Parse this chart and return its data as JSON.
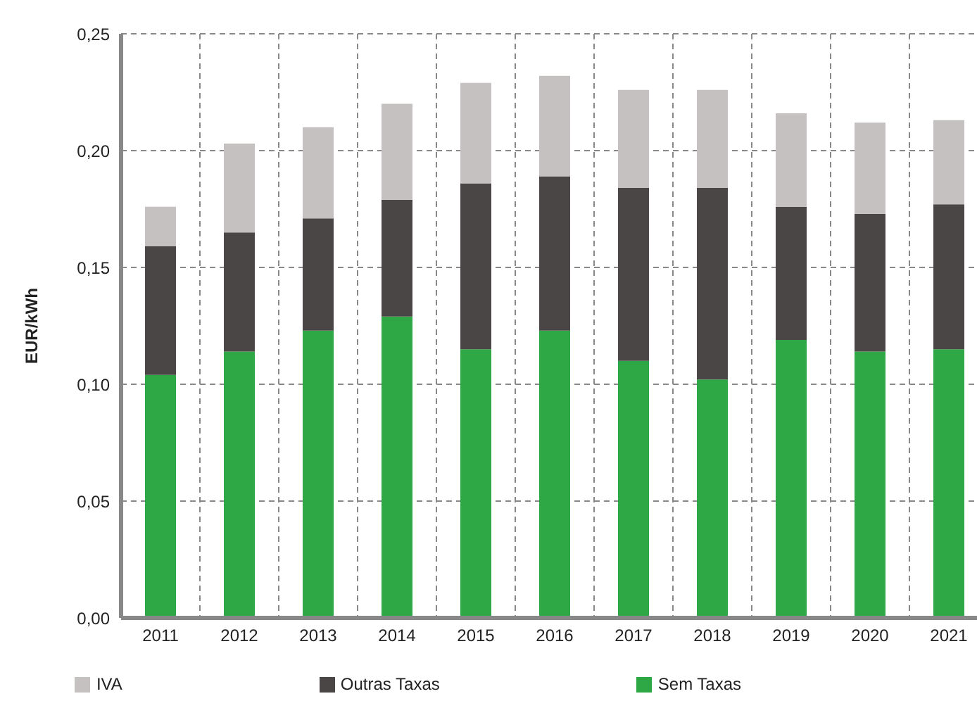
{
  "chart_data": {
    "type": "bar",
    "stacked": true,
    "ylabel": "EUR/kWh",
    "categories": [
      "2011",
      "2012",
      "2013",
      "2014",
      "2015",
      "2016",
      "2017",
      "2018",
      "2019",
      "2020",
      "2021"
    ],
    "series": [
      {
        "name": "Sem Taxas",
        "color": "#2ea844",
        "values": [
          0.104,
          0.114,
          0.123,
          0.129,
          0.115,
          0.123,
          0.11,
          0.102,
          0.119,
          0.114,
          0.115
        ]
      },
      {
        "name": "Outras Taxas",
        "color": "#4a4646",
        "values": [
          0.055,
          0.051,
          0.048,
          0.05,
          0.071,
          0.066,
          0.074,
          0.082,
          0.057,
          0.059,
          0.062
        ]
      },
      {
        "name": "IVA",
        "color": "#c5c1c1",
        "values": [
          0.017,
          0.038,
          0.039,
          0.041,
          0.043,
          0.043,
          0.042,
          0.042,
          0.04,
          0.039,
          0.036
        ]
      }
    ],
    "ylim": [
      0,
      0.25
    ],
    "yticks": [
      {
        "value": 0,
        "label": "0,00"
      },
      {
        "value": 0.05,
        "label": "0,05"
      },
      {
        "value": 0.1,
        "label": "0,10"
      },
      {
        "value": 0.15,
        "label": "0,15"
      },
      {
        "value": 0.2,
        "label": "0,20"
      },
      {
        "value": 0.25,
        "label": "0,25"
      }
    ],
    "grid": true,
    "legend": "bottom"
  }
}
